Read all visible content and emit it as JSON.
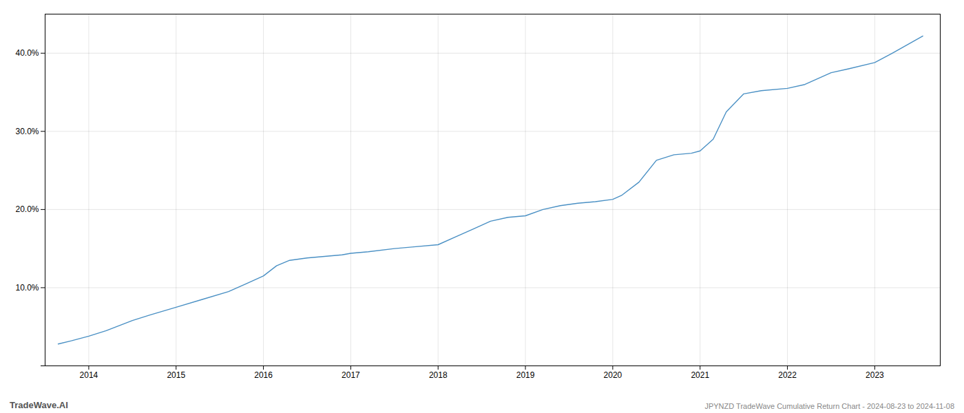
{
  "chart_data": {
    "type": "line",
    "title": "JPYNZD TradeWave Cumulative Return Chart - 2024-08-23 to 2024-11-08",
    "annotations": [
      "TradeWave.AI"
    ],
    "color": "#4a90c4",
    "x": [
      2013.65,
      2013.8,
      2014.0,
      2014.2,
      2014.5,
      2014.7,
      2015.0,
      2015.3,
      2015.6,
      2015.8,
      2016.0,
      2016.15,
      2016.3,
      2016.5,
      2016.7,
      2016.9,
      2017.0,
      2017.2,
      2017.5,
      2017.7,
      2018.0,
      2018.2,
      2018.4,
      2018.6,
      2018.8,
      2019.0,
      2019.2,
      2019.4,
      2019.6,
      2019.8,
      2020.0,
      2020.1,
      2020.3,
      2020.5,
      2020.7,
      2020.9,
      2021.0,
      2021.15,
      2021.3,
      2021.5,
      2021.7,
      2022.0,
      2022.2,
      2022.5,
      2022.7,
      2023.0,
      2023.2,
      2023.55
    ],
    "values": [
      2.8,
      3.2,
      3.8,
      4.5,
      5.8,
      6.5,
      7.5,
      8.5,
      9.5,
      10.5,
      11.5,
      12.8,
      13.5,
      13.8,
      14.0,
      14.2,
      14.4,
      14.6,
      15.0,
      15.2,
      15.5,
      16.5,
      17.5,
      18.5,
      19.0,
      19.2,
      20.0,
      20.5,
      20.8,
      21.0,
      21.3,
      21.8,
      23.5,
      26.3,
      27.0,
      27.2,
      27.5,
      29.0,
      32.5,
      34.8,
      35.2,
      35.5,
      36.0,
      37.5,
      38.0,
      38.8,
      40.0,
      42.2
    ],
    "xlim": [
      2013.5,
      2023.75
    ],
    "xticks": [
      2014,
      2015,
      2016,
      2017,
      2018,
      2019,
      2020,
      2021,
      2022,
      2023
    ],
    "ylim": [
      0,
      45
    ],
    "yticks": [
      {
        "value": 0,
        "label": null
      },
      {
        "value": 10.0,
        "label": "10.0%"
      },
      {
        "value": 20.0,
        "label": "20.0%"
      },
      {
        "value": 30.0,
        "label": "30.0%"
      },
      {
        "value": 40.0,
        "label": "40.0%"
      }
    ],
    "grid": true
  }
}
